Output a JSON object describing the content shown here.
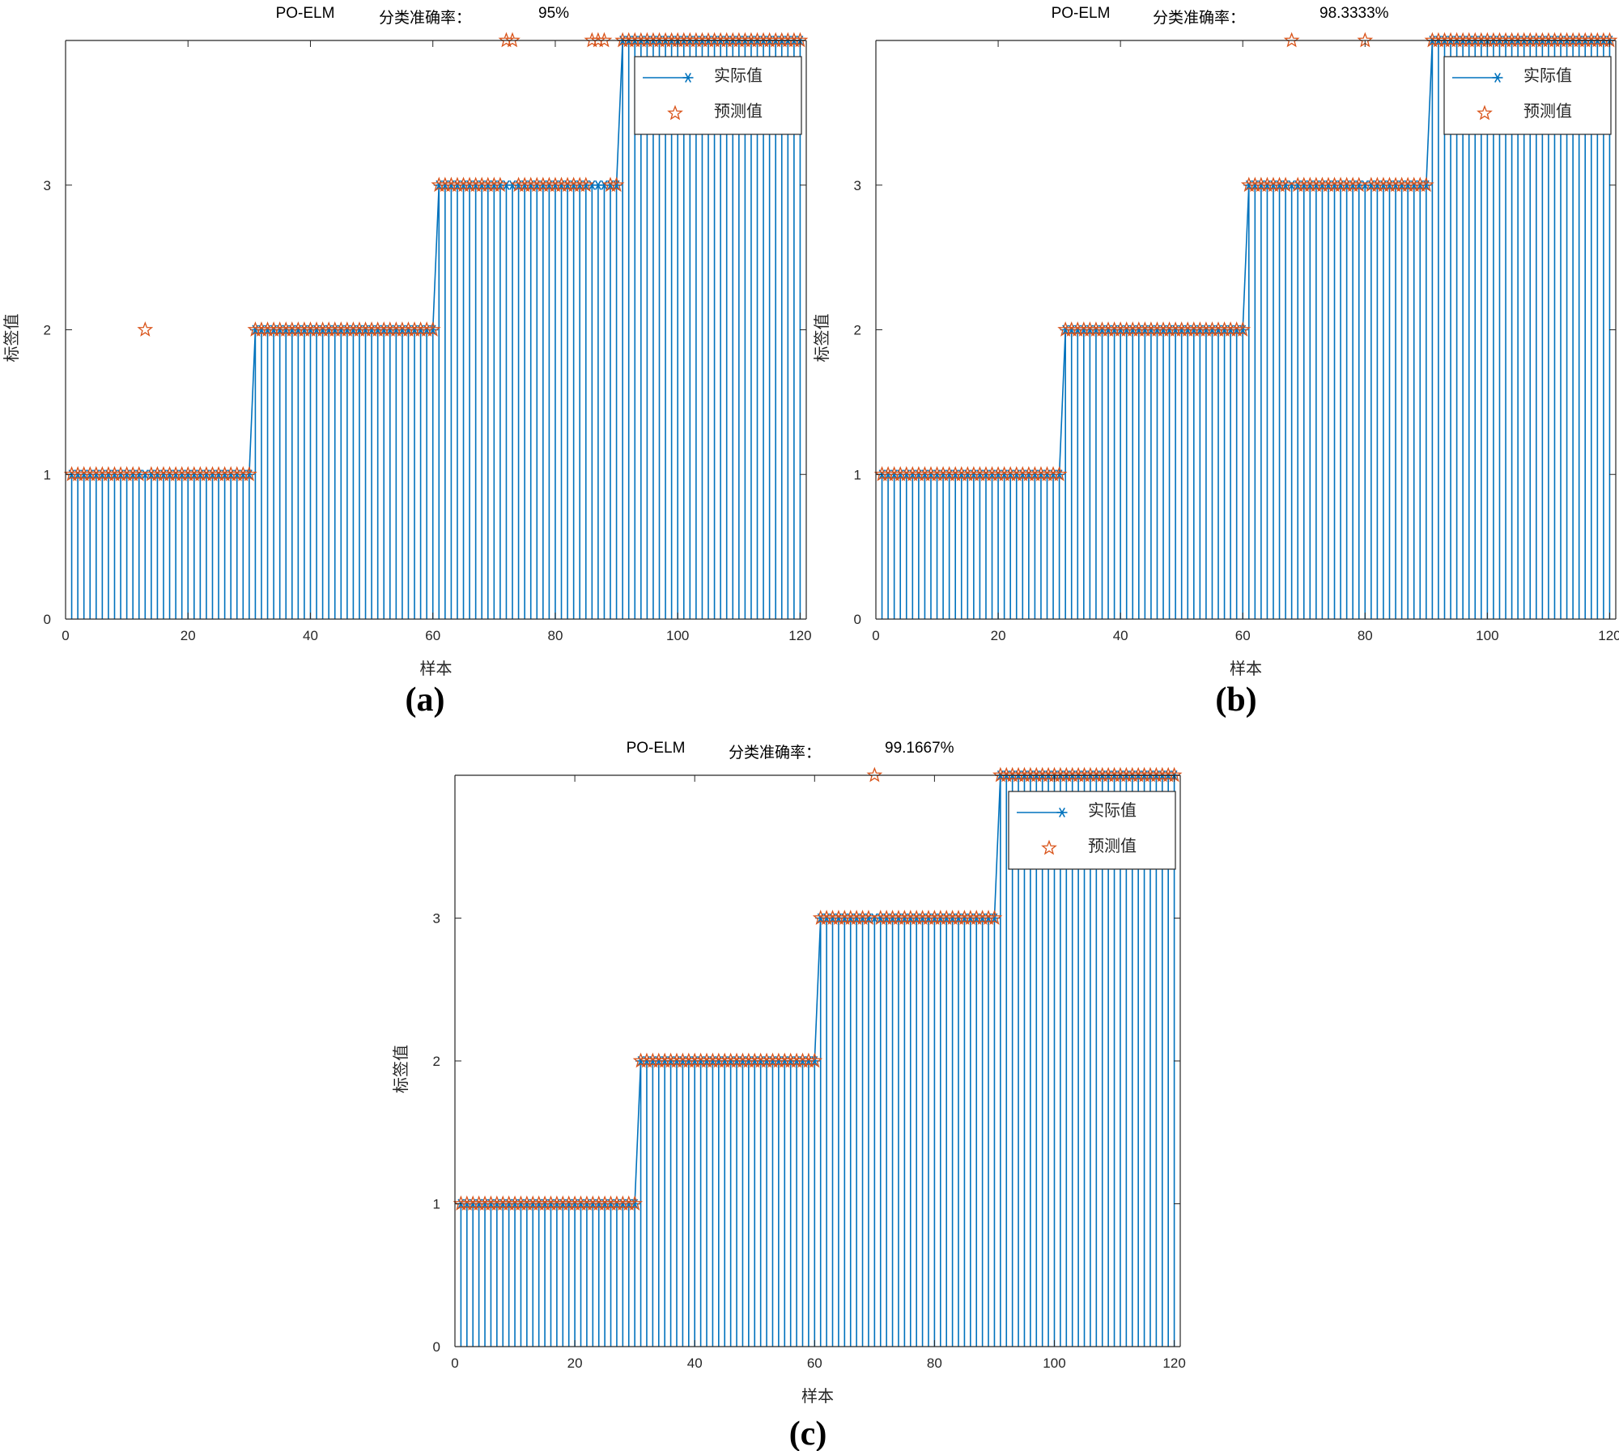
{
  "colors": {
    "stem": "#0072BD",
    "actual": "#0072BD",
    "predicted": "#D95319",
    "axis": "#262626"
  },
  "chart_data": [
    {
      "type": "stem",
      "title": "PO-ELM",
      "accuracy_label": "分类准确率：",
      "accuracy_value": "95%",
      "caption": "(a)",
      "xlabel": "样本",
      "ylabel": "标签值",
      "xlim": [
        0,
        121
      ],
      "ylim": [
        0,
        4
      ],
      "xticks": [
        "0",
        "20",
        "40",
        "60",
        "80",
        "100",
        "120"
      ],
      "yticks": [
        "0",
        "1",
        "2",
        "3"
      ],
      "legend": {
        "actual": "实际值",
        "predicted": "预测值",
        "position": "top-right"
      },
      "actual": {
        "segments": [
          {
            "from": 1,
            "to": 30,
            "value": 1
          },
          {
            "from": 31,
            "to": 60,
            "value": 2
          },
          {
            "from": 61,
            "to": 90,
            "value": 3
          },
          {
            "from": 91,
            "to": 120,
            "value": 4
          }
        ]
      },
      "predicted_mismatches": [
        {
          "x": 13,
          "y": 2
        },
        {
          "x": 72,
          "y": 4
        },
        {
          "x": 73,
          "y": 4
        },
        {
          "x": 86,
          "y": 4
        },
        {
          "x": 87,
          "y": 4
        },
        {
          "x": 88,
          "y": 4
        }
      ]
    },
    {
      "type": "stem",
      "title": "PO-ELM",
      "accuracy_label": "分类准确率：",
      "accuracy_value": "98.3333%",
      "caption": "(b)",
      "xlabel": "样本",
      "ylabel": "标签值",
      "xlim": [
        0,
        121
      ],
      "ylim": [
        0,
        4
      ],
      "xticks": [
        "0",
        "20",
        "40",
        "60",
        "80",
        "100",
        "120"
      ],
      "yticks": [
        "0",
        "1",
        "2",
        "3"
      ],
      "legend": {
        "actual": "实际值",
        "predicted": "预测值",
        "position": "top-right"
      },
      "actual": {
        "segments": [
          {
            "from": 1,
            "to": 30,
            "value": 1
          },
          {
            "from": 31,
            "to": 60,
            "value": 2
          },
          {
            "from": 61,
            "to": 90,
            "value": 3
          },
          {
            "from": 91,
            "to": 120,
            "value": 4
          }
        ]
      },
      "predicted_mismatches": [
        {
          "x": 68,
          "y": 4
        },
        {
          "x": 80,
          "y": 4
        }
      ]
    },
    {
      "type": "stem",
      "title": "PO-ELM",
      "accuracy_label": "分类准确率：",
      "accuracy_value": "99.1667%",
      "caption": "(c)",
      "xlabel": "样本",
      "ylabel": "标签值",
      "xlim": [
        0,
        121
      ],
      "ylim": [
        0,
        4
      ],
      "xticks": [
        "0",
        "20",
        "40",
        "60",
        "80",
        "100",
        "120"
      ],
      "yticks": [
        "0",
        "1",
        "2",
        "3"
      ],
      "legend": {
        "actual": "实际值",
        "predicted": "预测值",
        "position": "top-right"
      },
      "actual": {
        "segments": [
          {
            "from": 1,
            "to": 30,
            "value": 1
          },
          {
            "from": 31,
            "to": 60,
            "value": 2
          },
          {
            "from": 61,
            "to": 90,
            "value": 3
          },
          {
            "from": 91,
            "to": 120,
            "value": 4
          }
        ]
      },
      "predicted_mismatches": [
        {
          "x": 70,
          "y": 4
        }
      ]
    }
  ]
}
